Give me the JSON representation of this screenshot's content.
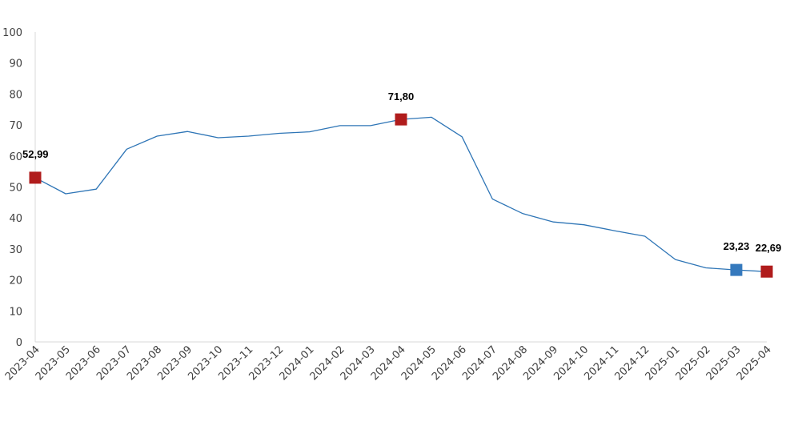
{
  "chart_data": {
    "type": "line",
    "title": "",
    "xlabel": "",
    "ylabel": "",
    "ylim": [
      0,
      100
    ],
    "y_ticks": [
      "0",
      "10",
      "20",
      "30",
      "40",
      "50",
      "60",
      "70",
      "80",
      "90",
      "100"
    ],
    "grid": false,
    "legend": "none",
    "categories": [
      "2023-04",
      "2023-05",
      "2023-06",
      "2023-07",
      "2023-08",
      "2023-09",
      "2023-10",
      "2023-11",
      "2023-12",
      "2024-01",
      "2024-02",
      "2024-03",
      "2024-04",
      "2024-05",
      "2024-06",
      "2024-07",
      "2024-08",
      "2024-09",
      "2024-10",
      "2024-11",
      "2024-12",
      "2025-01",
      "2025-02",
      "2025-03",
      "2025-04"
    ],
    "series": [
      {
        "color": "#2e75b6",
        "values": [
          52.99,
          47.8,
          49.3,
          62.2,
          66.4,
          67.9,
          65.9,
          66.4,
          67.3,
          67.8,
          69.8,
          69.8,
          71.8,
          72.5,
          66.2,
          46.1,
          41.4,
          38.7,
          37.8,
          35.9,
          34.1,
          26.6,
          23.9,
          23.23,
          22.69
        ]
      }
    ],
    "highlighted_points": [
      {
        "category": "2023-04",
        "value": 52.99,
        "label": "52,99",
        "color": "#b01c1c"
      },
      {
        "category": "2024-04",
        "value": 71.8,
        "label": "71,80",
        "color": "#b01c1c"
      },
      {
        "category": "2025-03",
        "value": 23.23,
        "label": "23,23",
        "color": "#3579bd"
      },
      {
        "category": "2025-04",
        "value": 22.69,
        "label": "22,69",
        "color": "#b01c1c"
      }
    ],
    "axis_color": "#d9d9d9",
    "line_color": "#2e75b6"
  }
}
